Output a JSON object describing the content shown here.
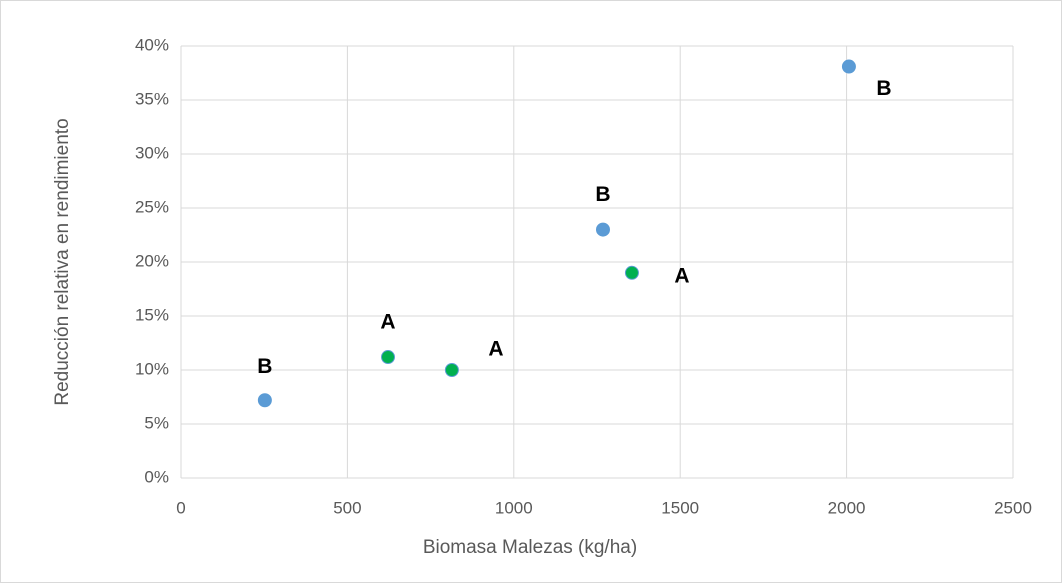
{
  "chart_data": {
    "type": "scatter",
    "x_label": "Biomasa Malezas (kg/ha)",
    "y_label": "Reducción relativa en rendimiento",
    "x": [
      252,
      622,
      814,
      1268,
      1355,
      2007
    ],
    "values": [
      7.2,
      11.2,
      10.0,
      23.0,
      19.0,
      38.1
    ],
    "colors": [
      "#5b9bd5",
      "#00b050",
      "#00b050",
      "#5b9bd5",
      "#00b050",
      "#5b9bd5"
    ],
    "point_labels": [
      "B",
      "A",
      "A",
      "B",
      "A",
      "B"
    ],
    "xlim": [
      0,
      2500
    ],
    "xticks": [
      0,
      500,
      1000,
      1500,
      2000,
      2500
    ],
    "ylim": [
      0,
      40
    ],
    "yticks": [
      {
        "value": 0,
        "label": "0%"
      },
      {
        "value": 5,
        "label": "5%"
      },
      {
        "value": 10,
        "label": "10%"
      },
      {
        "value": 15,
        "label": "15%"
      },
      {
        "value": 20,
        "label": "20%"
      },
      {
        "value": 25,
        "label": "25%"
      },
      {
        "value": 30,
        "label": "30%"
      },
      {
        "value": 35,
        "label": "35%"
      },
      {
        "value": 40,
        "label": "40%"
      }
    ],
    "grid": true
  }
}
